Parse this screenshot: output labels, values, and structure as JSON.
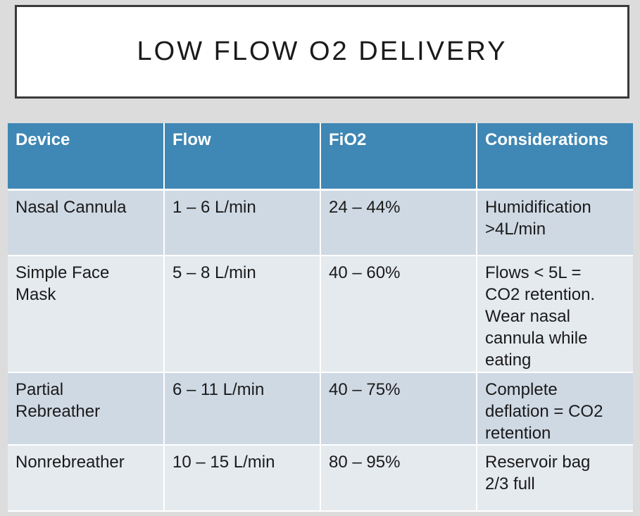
{
  "title": "LOW FLOW O2 DELIVERY",
  "table": {
    "headers": [
      "Device",
      "Flow",
      "FiO2",
      "Considerations"
    ],
    "rows": [
      {
        "device": [
          "Nasal Cannula"
        ],
        "flow": "1 – 6 L/min",
        "fio2": "24 – 44%",
        "considerations": [
          "Humidification",
          ">4L/min"
        ]
      },
      {
        "device": [
          "Simple Face",
          "Mask"
        ],
        "flow": "5 – 8 L/min",
        "fio2": "40 – 60%",
        "considerations": [
          "Flows < 5L =",
          "CO2 retention.",
          "Wear nasal",
          "cannula while",
          "eating"
        ]
      },
      {
        "device": [
          "Partial",
          "Rebreather"
        ],
        "flow": "6 – 11 L/min",
        "fio2": "40 – 75%",
        "considerations": [
          "Complete",
          "deflation = CO2",
          "retention"
        ]
      },
      {
        "device": [
          "Nonrebreather"
        ],
        "flow": "10 – 15 L/min",
        "fio2": "80 – 95%",
        "considerations": [
          "Reservoir bag",
          "2/3 full"
        ]
      }
    ]
  },
  "colors": {
    "header_bg": "#3f87b4",
    "row_odd_bg": "#cfd9e4",
    "row_even_bg": "#e5eaef",
    "page_bg": "#dcdcdc"
  }
}
